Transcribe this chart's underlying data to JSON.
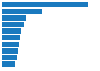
{
  "values": [
    260,
    120,
    73,
    65,
    58,
    53,
    50,
    47,
    44,
    38
  ],
  "bar_color": "#1a7abf",
  "background_color": "#ffffff",
  "grid_color": "#d0d0d0",
  "xlim": [
    0,
    290
  ],
  "bar_height": 0.82
}
